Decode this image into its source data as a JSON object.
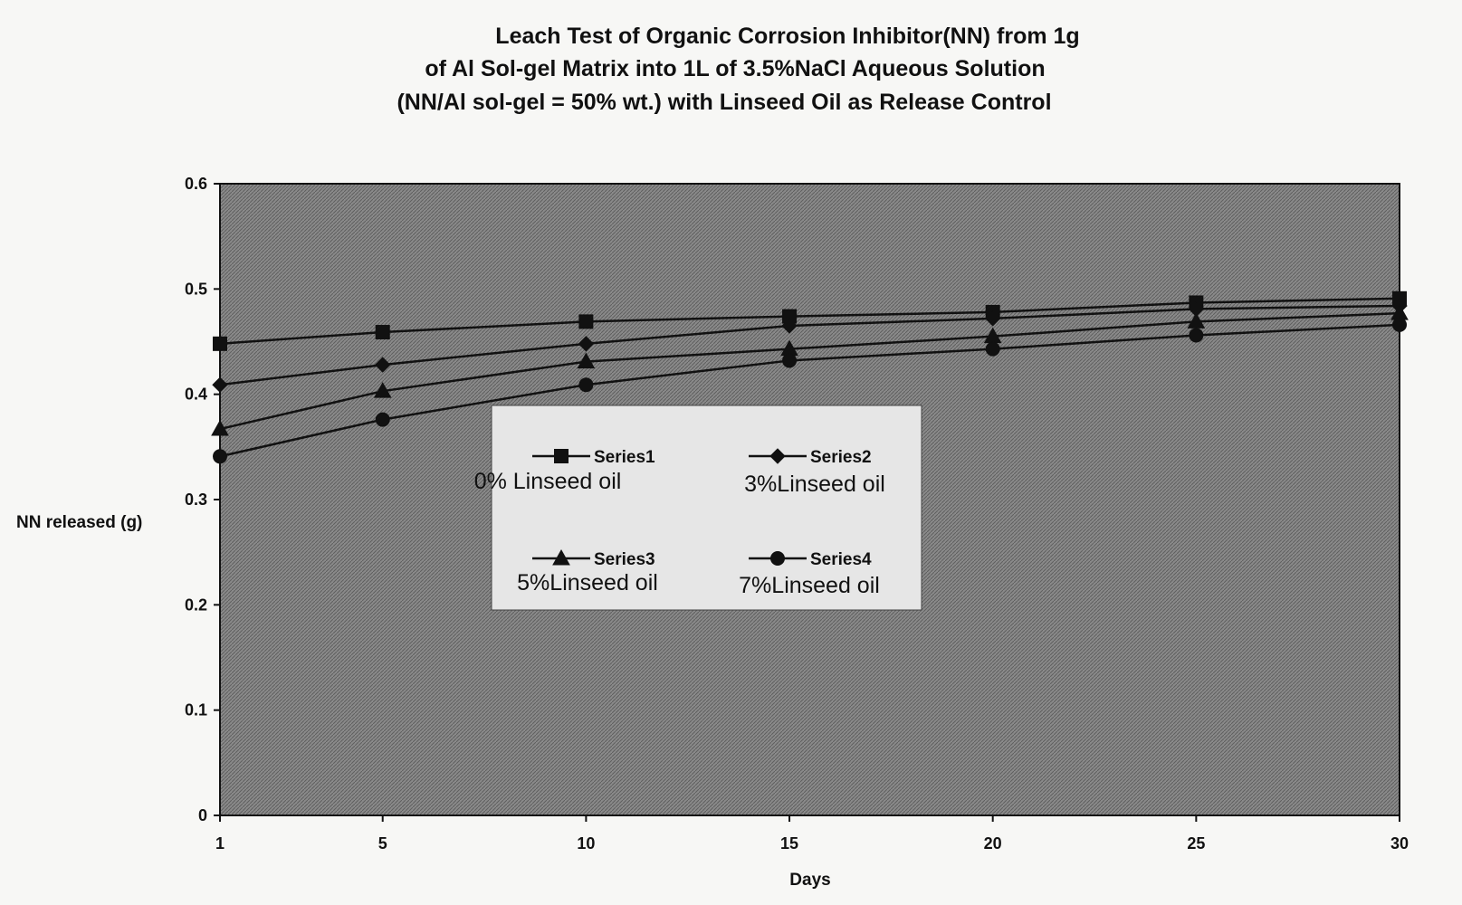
{
  "chart_data": {
    "type": "line",
    "title_lines": [
      "Leach Test of Organic Corrosion Inhibitor(NN) from 1g",
      "of Al Sol-gel Matrix into 1L of 3.5%NaCl Aqueous Solution",
      "(NN/Al sol-gel = 50% wt.) with Linseed Oil as Release Control"
    ],
    "xlabel": "Days",
    "ylabel": "NN released (g)",
    "x": [
      1,
      5,
      10,
      15,
      20,
      25,
      30
    ],
    "x_tick_labels": [
      "1",
      "5",
      "10",
      "15",
      "20",
      "25",
      "30"
    ],
    "y_tick_labels": [
      "0",
      "0.1",
      "0.2",
      "0.3",
      "0.4",
      "0.5",
      "0.6"
    ],
    "ylim": [
      0,
      0.6
    ],
    "grid": false,
    "plot_background": "#7d7d7d",
    "legend_placement": "center",
    "series": [
      {
        "name": "Series1",
        "note": "0% Linseed oil",
        "marker": "square",
        "values": [
          0.448,
          0.459,
          0.469,
          0.474,
          0.478,
          0.487,
          0.491
        ]
      },
      {
        "name": "Series2",
        "note": "3%Linseed oil",
        "marker": "diamond",
        "values": [
          0.409,
          0.428,
          0.448,
          0.465,
          0.472,
          0.481,
          0.484
        ]
      },
      {
        "name": "Series3",
        "note": "5%Linseed oil",
        "marker": "triangle",
        "values": [
          0.367,
          0.403,
          0.431,
          0.443,
          0.455,
          0.469,
          0.477
        ]
      },
      {
        "name": "Series4",
        "note": "7%Linseed oil",
        "marker": "circle",
        "values": [
          0.341,
          0.376,
          0.409,
          0.432,
          0.443,
          0.456,
          0.466
        ]
      }
    ]
  }
}
